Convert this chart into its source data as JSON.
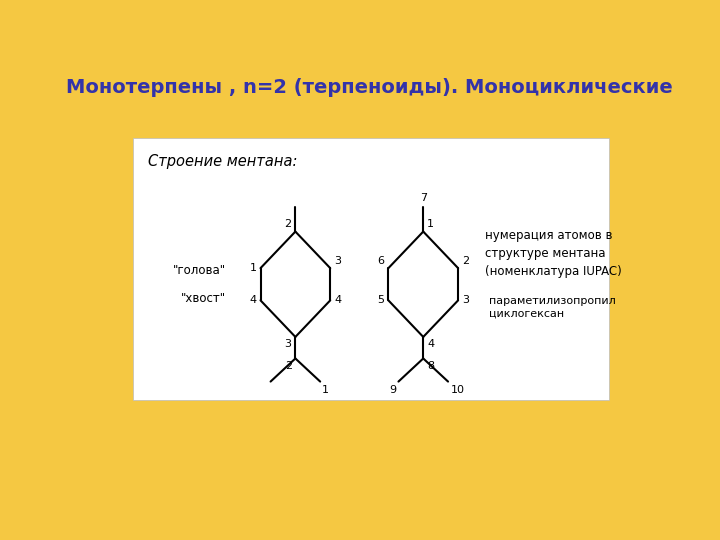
{
  "bg_color": "#F5C842",
  "title": "Монотерпены , n=2 (терпеноиды). Моноциклические",
  "title_color": "#3333AA",
  "title_fontsize": 14,
  "stroenie_text": "Строение ментана:",
  "nomenklatura_text": "нумерация атомов в\nструктуре ментана\n(номенклатура IUPAC)",
  "para_text": "параметилизопропил\nциклогексан",
  "golova_text": "\"голова\"",
  "hvost_text": "\"хвост\"",
  "line_color": "#000000",
  "text_color": "#000000"
}
